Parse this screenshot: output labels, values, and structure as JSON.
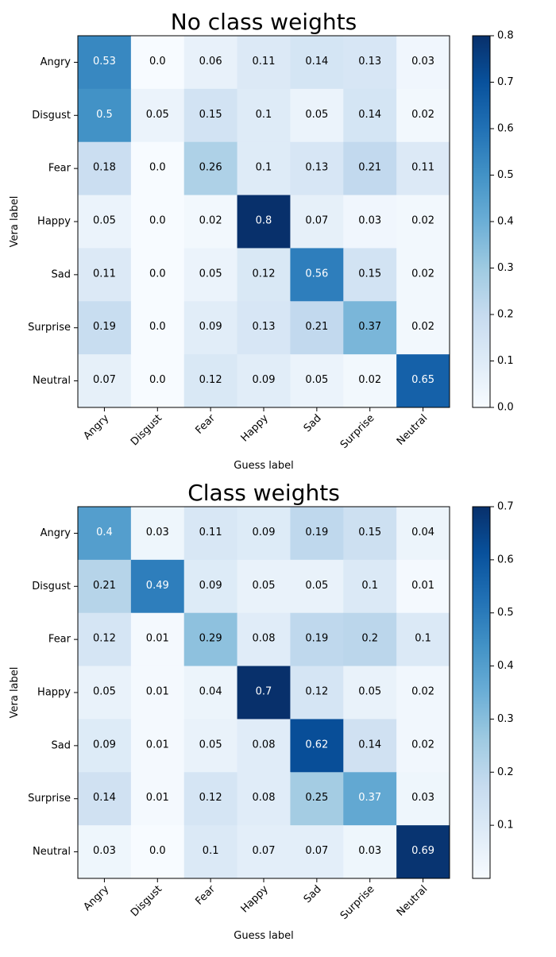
{
  "chart_data": [
    {
      "type": "heatmap",
      "title": "No class weights",
      "xlabel": "Guess label",
      "ylabel": "Vera label",
      "x_categories": [
        "Angry",
        "Disgust",
        "Fear",
        "Happy",
        "Sad",
        "Surprise",
        "Neutral"
      ],
      "y_categories": [
        "Angry",
        "Disgust",
        "Fear",
        "Happy",
        "Sad",
        "Surprise",
        "Neutral"
      ],
      "values": [
        [
          0.53,
          0.0,
          0.06,
          0.11,
          0.14,
          0.13,
          0.03
        ],
        [
          0.5,
          0.05,
          0.15,
          0.1,
          0.05,
          0.14,
          0.02
        ],
        [
          0.18,
          0.0,
          0.26,
          0.1,
          0.13,
          0.21,
          0.11
        ],
        [
          0.05,
          0.0,
          0.02,
          0.8,
          0.07,
          0.03,
          0.02
        ],
        [
          0.11,
          0.0,
          0.05,
          0.12,
          0.56,
          0.15,
          0.02
        ],
        [
          0.19,
          0.0,
          0.09,
          0.13,
          0.21,
          0.37,
          0.02
        ],
        [
          0.07,
          0.0,
          0.12,
          0.09,
          0.05,
          0.02,
          0.65
        ]
      ],
      "value_labels": [
        [
          "0.53",
          "0.0",
          "0.06",
          "0.11",
          "0.14",
          "0.13",
          "0.03"
        ],
        [
          "0.5",
          "0.05",
          "0.15",
          "0.1",
          "0.05",
          "0.14",
          "0.02"
        ],
        [
          "0.18",
          "0.0",
          "0.26",
          "0.1",
          "0.13",
          "0.21",
          "0.11"
        ],
        [
          "0.05",
          "0.0",
          "0.02",
          "0.8",
          "0.07",
          "0.03",
          "0.02"
        ],
        [
          "0.11",
          "0.0",
          "0.05",
          "0.12",
          "0.56",
          "0.15",
          "0.02"
        ],
        [
          "0.19",
          "0.0",
          "0.09",
          "0.13",
          "0.21",
          "0.37",
          "0.02"
        ],
        [
          "0.07",
          "0.0",
          "0.12",
          "0.09",
          "0.05",
          "0.02",
          "0.65"
        ]
      ],
      "colorbar": {
        "range": [
          0.0,
          0.8
        ],
        "ticks": [
          0.0,
          0.1,
          0.2,
          0.3,
          0.4,
          0.5,
          0.6,
          0.7,
          0.8
        ],
        "tick_labels": [
          "0.0",
          "0.1",
          "0.2",
          "0.3",
          "0.4",
          "0.5",
          "0.6",
          "0.7",
          "0.8"
        ]
      },
      "colormap": "Blues"
    },
    {
      "type": "heatmap",
      "title": "Class weights",
      "xlabel": "Guess label",
      "ylabel": "Vera label",
      "x_categories": [
        "Angry",
        "Disgust",
        "Fear",
        "Happy",
        "Sad",
        "Surprise",
        "Neutral"
      ],
      "y_categories": [
        "Angry",
        "Disgust",
        "Fear",
        "Happy",
        "Sad",
        "Surprise",
        "Neutral"
      ],
      "values": [
        [
          0.4,
          0.03,
          0.11,
          0.09,
          0.19,
          0.15,
          0.04
        ],
        [
          0.21,
          0.49,
          0.09,
          0.05,
          0.05,
          0.1,
          0.01
        ],
        [
          0.12,
          0.01,
          0.29,
          0.08,
          0.19,
          0.2,
          0.1
        ],
        [
          0.05,
          0.01,
          0.04,
          0.7,
          0.12,
          0.05,
          0.02
        ],
        [
          0.09,
          0.01,
          0.05,
          0.08,
          0.62,
          0.14,
          0.02
        ],
        [
          0.14,
          0.01,
          0.12,
          0.08,
          0.25,
          0.37,
          0.03
        ],
        [
          0.03,
          0.0,
          0.1,
          0.07,
          0.07,
          0.03,
          0.69
        ]
      ],
      "value_labels": [
        [
          "0.4",
          "0.03",
          "0.11",
          "0.09",
          "0.19",
          "0.15",
          "0.04"
        ],
        [
          "0.21",
          "0.49",
          "0.09",
          "0.05",
          "0.05",
          "0.1",
          "0.01"
        ],
        [
          "0.12",
          "0.01",
          "0.29",
          "0.08",
          "0.19",
          "0.2",
          "0.1"
        ],
        [
          "0.05",
          "0.01",
          "0.04",
          "0.7",
          "0.12",
          "0.05",
          "0.02"
        ],
        [
          "0.09",
          "0.01",
          "0.05",
          "0.08",
          "0.62",
          "0.14",
          "0.02"
        ],
        [
          "0.14",
          "0.01",
          "0.12",
          "0.08",
          "0.25",
          "0.37",
          "0.03"
        ],
        [
          "0.03",
          "0.0",
          "0.1",
          "0.07",
          "0.07",
          "0.03",
          "0.69"
        ]
      ],
      "colorbar": {
        "range": [
          0.0,
          0.7
        ],
        "ticks": [
          0.1,
          0.2,
          0.3,
          0.4,
          0.5,
          0.6,
          0.7
        ],
        "tick_labels": [
          "0.1",
          "0.2",
          "0.3",
          "0.4",
          "0.5",
          "0.6",
          "0.7"
        ]
      },
      "colormap": "Blues"
    }
  ]
}
